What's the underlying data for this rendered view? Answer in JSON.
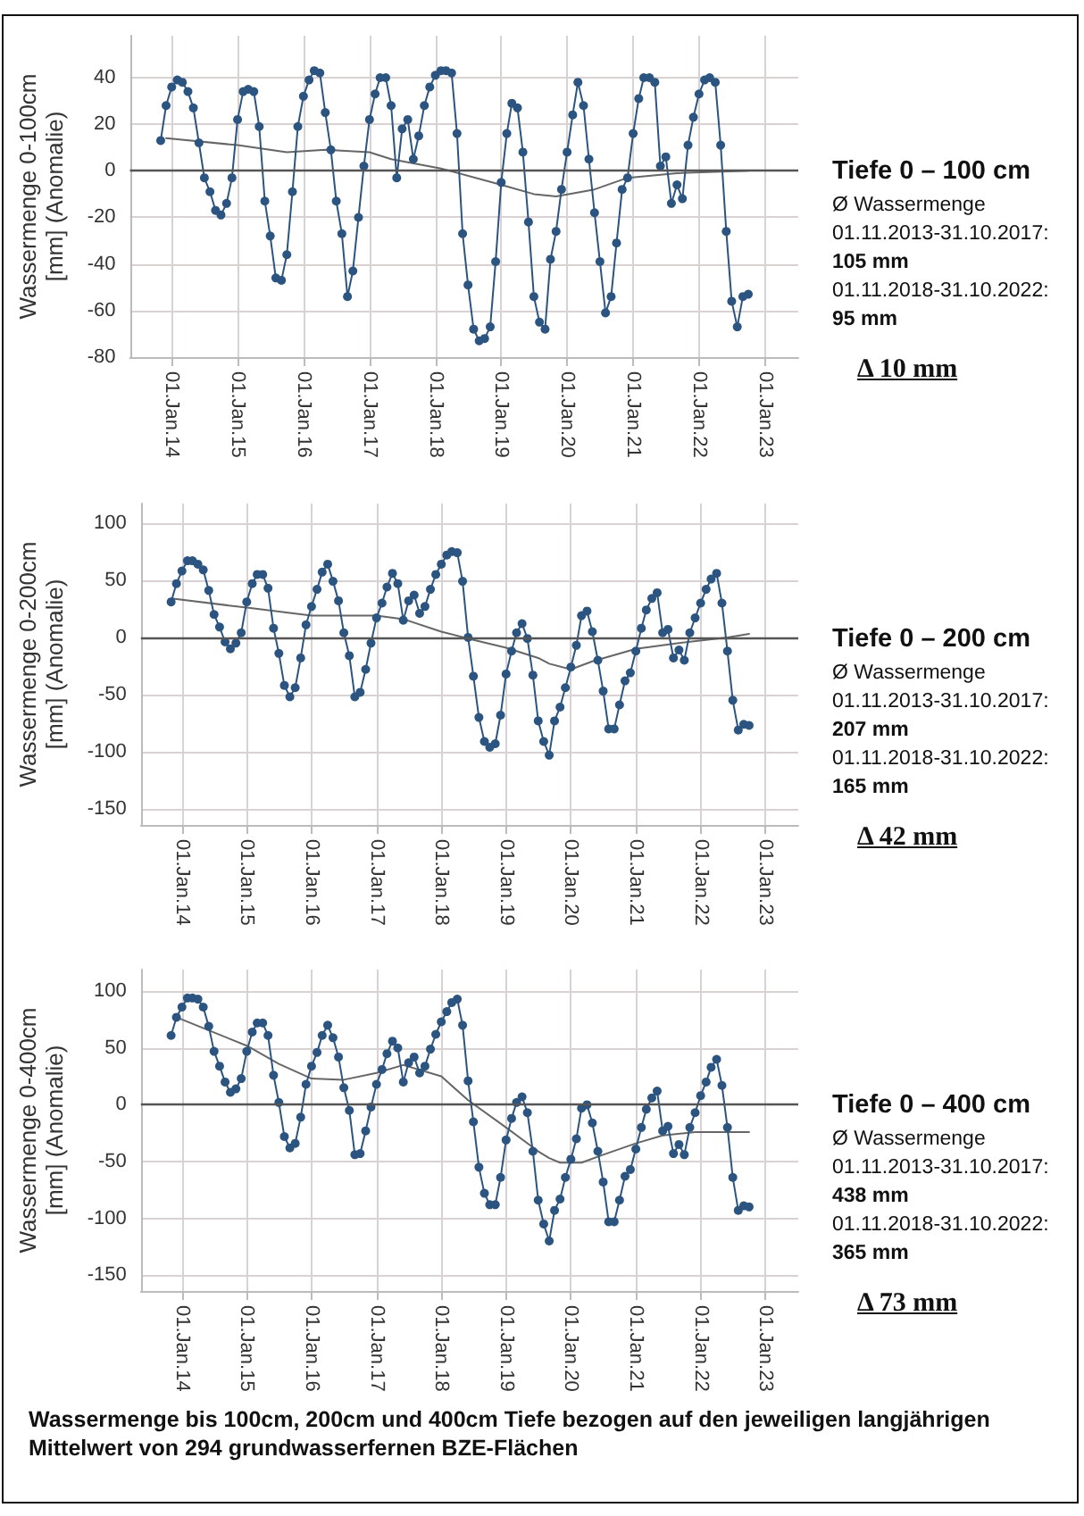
{
  "chart_data": [
    {
      "type": "line",
      "ylabel": "Wassermenge 0-100cm [mm] (Anomalie)",
      "xlim": [
        "2013-05-15",
        "2023-07-05"
      ],
      "ylim": [
        -80,
        58
      ],
      "xticks": [
        {
          "value": "2014-01-01",
          "label": "01.Jan.14"
        },
        {
          "value": "2015-01-01",
          "label": "01.Jan.15"
        },
        {
          "value": "2016-01-01",
          "label": "01.Jan.16"
        },
        {
          "value": "2017-01-01",
          "label": "01.Jan.17"
        },
        {
          "value": "2018-01-01",
          "label": "01.Jan.18"
        },
        {
          "value": "2019-01-01",
          "label": "01.Jan.19"
        },
        {
          "value": "2020-01-01",
          "label": "01.Jan.20"
        },
        {
          "value": "2021-01-01",
          "label": "01.Jan.21"
        },
        {
          "value": "2022-01-01",
          "label": "01.Jan.22"
        },
        {
          "value": "2023-01-01",
          "label": "01.Jan.23"
        }
      ],
      "yticks": [
        -80,
        -60,
        -40,
        -20,
        0,
        20,
        40
      ],
      "grid": true,
      "marker": "circle",
      "ref_lines": [
        {
          "axis": "y",
          "value": 0,
          "color": "#555555"
        }
      ],
      "x": [
        "2013-11",
        "2013-12",
        "2014-01",
        "2014-02",
        "2014-03",
        "2014-04",
        "2014-05",
        "2014-06",
        "2014-07",
        "2014-08",
        "2014-09",
        "2014-10",
        "2014-11",
        "2014-12",
        "2015-01",
        "2015-02",
        "2015-03",
        "2015-04",
        "2015-05",
        "2015-06",
        "2015-07",
        "2015-08",
        "2015-09",
        "2015-10",
        "2015-11",
        "2015-12",
        "2016-01",
        "2016-02",
        "2016-03",
        "2016-04",
        "2016-05",
        "2016-06",
        "2016-07",
        "2016-08",
        "2016-09",
        "2016-10",
        "2016-11",
        "2016-12",
        "2017-01",
        "2017-02",
        "2017-03",
        "2017-04",
        "2017-05",
        "2017-06",
        "2017-07",
        "2017-08",
        "2017-09",
        "2017-10",
        "2017-11",
        "2017-12",
        "2018-01",
        "2018-02",
        "2018-03",
        "2018-04",
        "2018-05",
        "2018-06",
        "2018-07",
        "2018-08",
        "2018-09",
        "2018-10",
        "2018-11",
        "2018-12",
        "2019-01",
        "2019-02",
        "2019-03",
        "2019-04",
        "2019-05",
        "2019-06",
        "2019-07",
        "2019-08",
        "2019-09",
        "2019-10",
        "2019-11",
        "2019-12",
        "2020-01",
        "2020-02",
        "2020-03",
        "2020-04",
        "2020-05",
        "2020-06",
        "2020-07",
        "2020-08",
        "2020-09",
        "2020-10",
        "2020-11",
        "2020-12",
        "2021-01",
        "2021-02",
        "2021-03",
        "2021-04",
        "2021-05",
        "2021-06",
        "2021-07",
        "2021-08",
        "2021-09",
        "2021-10",
        "2021-11",
        "2021-12",
        "2022-01",
        "2022-02",
        "2022-03",
        "2022-04",
        "2022-05",
        "2022-06",
        "2022-07",
        "2022-08",
        "2022-09",
        "2022-10"
      ],
      "series": [
        {
          "color": "#2b5580",
          "values": [
            13,
            28,
            36,
            39,
            38,
            34,
            27,
            12,
            -3,
            -9,
            -17,
            -19,
            -14,
            -3,
            22,
            34,
            35,
            34,
            19,
            -13,
            -28,
            -46,
            -47,
            -36,
            -9,
            19,
            32,
            39,
            43,
            42,
            25,
            9,
            -13,
            -27,
            -54,
            -43,
            -20,
            2,
            22,
            33,
            40,
            40,
            28,
            -3,
            18,
            22,
            5,
            15,
            28,
            36,
            41,
            43,
            43,
            42,
            16,
            -27,
            -49,
            -68,
            -73,
            -72,
            -67,
            -39,
            -5,
            16,
            29,
            27,
            8,
            -22,
            -54,
            -65,
            -68,
            -38,
            -26,
            -8,
            8,
            24,
            38,
            28,
            5,
            -18,
            -39,
            -61,
            -54,
            -31,
            -8,
            -3,
            16,
            31,
            40,
            40,
            38,
            2,
            6,
            -14,
            -6,
            -12,
            11,
            23,
            33,
            39,
            40,
            38,
            11,
            -26,
            -56,
            -67,
            -54,
            -53
          ]
        },
        {
          "type": "line",
          "marker": "none",
          "color": "#666666",
          "x": [
            "2013-12",
            "2015-01",
            "2015-10",
            "2016-05",
            "2017-01",
            "2017-05",
            "2018-02",
            "2019-01",
            "2019-07",
            "2019-11",
            "2020-06",
            "2020-12",
            "2021-09",
            "2022-10"
          ],
          "values": [
            14,
            11,
            8,
            9,
            8,
            5,
            1,
            -6,
            -10,
            -11,
            -8,
            -3,
            -1,
            0
          ]
        }
      ]
    },
    {
      "type": "other",
      "title": "Tiefe 0 – 100 cm",
      "annotations": [
        "Ø Wassermenge",
        "01.11.2013-31.10.2017:",
        "105 mm",
        "01.11.2018-31.10.2022:",
        "95 mm",
        "Δ 10 mm"
      ]
    },
    {
      "type": "line",
      "ylabel": "Wassermenge 0-200cm [mm] (Anomalie)",
      "xlim": [
        "2013-05-15",
        "2023-07-05"
      ],
      "ylim": [
        -164,
        117
      ],
      "xticks": [
        {
          "value": "2014-01-01",
          "label": "01.Jan.14"
        },
        {
          "value": "2015-01-01",
          "label": "01.Jan.15"
        },
        {
          "value": "2016-01-01",
          "label": "01.Jan.16"
        },
        {
          "value": "2017-01-01",
          "label": "01.Jan.17"
        },
        {
          "value": "2018-01-01",
          "label": "01.Jan.18"
        },
        {
          "value": "2019-01-01",
          "label": "01.Jan.19"
        },
        {
          "value": "2020-01-01",
          "label": "01.Jan.20"
        },
        {
          "value": "2021-01-01",
          "label": "01.Jan.21"
        },
        {
          "value": "2022-01-01",
          "label": "01.Jan.22"
        },
        {
          "value": "2023-01-01",
          "label": "01.Jan.23"
        }
      ],
      "yticks": [
        -150,
        -100,
        -50,
        0,
        50,
        100
      ],
      "grid": true,
      "marker": "circle",
      "ref_lines": [
        {
          "axis": "y",
          "value": 0,
          "color": "#555555"
        }
      ],
      "x": [
        "2013-11",
        "2013-12",
        "2014-01",
        "2014-02",
        "2014-03",
        "2014-04",
        "2014-05",
        "2014-06",
        "2014-07",
        "2014-08",
        "2014-09",
        "2014-10",
        "2014-11",
        "2014-12",
        "2015-01",
        "2015-02",
        "2015-03",
        "2015-04",
        "2015-05",
        "2015-06",
        "2015-07",
        "2015-08",
        "2015-09",
        "2015-10",
        "2015-11",
        "2015-12",
        "2016-01",
        "2016-02",
        "2016-03",
        "2016-04",
        "2016-05",
        "2016-06",
        "2016-07",
        "2016-08",
        "2016-09",
        "2016-10",
        "2016-11",
        "2016-12",
        "2017-01",
        "2017-02",
        "2017-03",
        "2017-04",
        "2017-05",
        "2017-06",
        "2017-07",
        "2017-08",
        "2017-09",
        "2017-10",
        "2017-11",
        "2017-12",
        "2018-01",
        "2018-02",
        "2018-03",
        "2018-04",
        "2018-05",
        "2018-06",
        "2018-07",
        "2018-08",
        "2018-09",
        "2018-10",
        "2018-11",
        "2018-12",
        "2019-01",
        "2019-02",
        "2019-03",
        "2019-04",
        "2019-05",
        "2019-06",
        "2019-07",
        "2019-08",
        "2019-09",
        "2019-10",
        "2019-11",
        "2019-12",
        "2020-01",
        "2020-02",
        "2020-03",
        "2020-04",
        "2020-05",
        "2020-06",
        "2020-07",
        "2020-08",
        "2020-09",
        "2020-10",
        "2020-11",
        "2020-12",
        "2021-01",
        "2021-02",
        "2021-03",
        "2021-04",
        "2021-05",
        "2021-06",
        "2021-07",
        "2021-08",
        "2021-09",
        "2021-10",
        "2021-11",
        "2021-12",
        "2022-01",
        "2022-02",
        "2022-03",
        "2022-04",
        "2022-05",
        "2022-06",
        "2022-07",
        "2022-08",
        "2022-09",
        "2022-10"
      ],
      "series": [
        {
          "color": "#2b5580",
          "values": [
            31,
            47,
            58,
            67,
            67,
            64,
            59,
            41,
            20,
            9,
            -4,
            -10,
            -5,
            4,
            31,
            47,
            55,
            55,
            43,
            8,
            -14,
            -42,
            -52,
            -44,
            -18,
            11,
            27,
            42,
            57,
            64,
            49,
            32,
            4,
            -16,
            -52,
            -48,
            -28,
            -5,
            17,
            30,
            44,
            56,
            47,
            15,
            32,
            37,
            21,
            27,
            42,
            55,
            64,
            72,
            75,
            74,
            49,
            0,
            -34,
            -70,
            -91,
            -96,
            -93,
            -68,
            -32,
            -12,
            4,
            12,
            -1,
            -33,
            -73,
            -91,
            -103,
            -73,
            -61,
            -44,
            -26,
            -7,
            19,
            23,
            5,
            -20,
            -47,
            -80,
            -80,
            -59,
            -38,
            -31,
            -12,
            8,
            24,
            34,
            39,
            4,
            7,
            -18,
            -11,
            -20,
            4,
            17,
            30,
            42,
            51,
            56,
            30,
            -12,
            -55,
            -81,
            -76,
            -77
          ]
        },
        {
          "type": "line",
          "marker": "none",
          "color": "#666666",
          "x": [
            "2013-11",
            "2015-01",
            "2016-01",
            "2017-01",
            "2017-06",
            "2018-01",
            "2018-06",
            "2019-01",
            "2019-07",
            "2019-09",
            "2020-01",
            "2020-05",
            "2021-01",
            "2021-09",
            "2022-06",
            "2022-10"
          ],
          "values": [
            34,
            26,
            19,
            19,
            16,
            5,
            -1,
            -9,
            -18,
            -23,
            -28,
            -21,
            -10,
            -5,
            0,
            3
          ]
        }
      ]
    },
    {
      "type": "other",
      "title": "Tiefe 0 – 200 cm",
      "annotations": [
        "Ø Wassermenge",
        "01.11.2013-31.10.2017:",
        "207 mm",
        "01.11.2018-31.10.2022:",
        "165 mm",
        "Δ 42 mm"
      ]
    },
    {
      "type": "line",
      "ylabel": "Wassermenge 0-400cm [mm] (Anomalie)",
      "xlim": [
        "2013-05-15",
        "2023-07-05"
      ],
      "ylim": [
        -164,
        119
      ],
      "xticks": [
        {
          "value": "2014-01-01",
          "label": "01.Jan.14"
        },
        {
          "value": "2015-01-01",
          "label": "01.Jan.15"
        },
        {
          "value": "2016-01-01",
          "label": "01.Jan.16"
        },
        {
          "value": "2017-01-01",
          "label": "01.Jan.17"
        },
        {
          "value": "2018-01-01",
          "label": "01.Jan.18"
        },
        {
          "value": "2019-01-01",
          "label": "01.Jan.19"
        },
        {
          "value": "2020-01-01",
          "label": "01.Jan.20"
        },
        {
          "value": "2021-01-01",
          "label": "01.Jan.21"
        },
        {
          "value": "2022-01-01",
          "label": "01.Jan.22"
        },
        {
          "value": "2023-01-01",
          "label": "01.Jan.23"
        }
      ],
      "yticks": [
        -150,
        -100,
        -50,
        0,
        50,
        100
      ],
      "grid": true,
      "marker": "circle",
      "ref_lines": [
        {
          "axis": "y",
          "value": 0,
          "color": "#555555"
        }
      ],
      "x": [
        "2013-11",
        "2013-12",
        "2014-01",
        "2014-02",
        "2014-03",
        "2014-04",
        "2014-05",
        "2014-06",
        "2014-07",
        "2014-08",
        "2014-09",
        "2014-10",
        "2014-11",
        "2014-12",
        "2015-01",
        "2015-02",
        "2015-03",
        "2015-04",
        "2015-05",
        "2015-06",
        "2015-07",
        "2015-08",
        "2015-09",
        "2015-10",
        "2015-11",
        "2015-12",
        "2016-01",
        "2016-02",
        "2016-03",
        "2016-04",
        "2016-05",
        "2016-06",
        "2016-07",
        "2016-08",
        "2016-09",
        "2016-10",
        "2016-11",
        "2016-12",
        "2017-01",
        "2017-02",
        "2017-03",
        "2017-04",
        "2017-05",
        "2017-06",
        "2017-07",
        "2017-08",
        "2017-09",
        "2017-10",
        "2017-11",
        "2017-12",
        "2018-01",
        "2018-02",
        "2018-03",
        "2018-04",
        "2018-05",
        "2018-06",
        "2018-07",
        "2018-08",
        "2018-09",
        "2018-10",
        "2018-11",
        "2018-12",
        "2019-01",
        "2019-02",
        "2019-03",
        "2019-04",
        "2019-05",
        "2019-06",
        "2019-07",
        "2019-08",
        "2019-09",
        "2019-10",
        "2019-11",
        "2019-12",
        "2020-01",
        "2020-02",
        "2020-03",
        "2020-04",
        "2020-05",
        "2020-06",
        "2020-07",
        "2020-08",
        "2020-09",
        "2020-10",
        "2020-11",
        "2020-12",
        "2021-01",
        "2021-02",
        "2021-03",
        "2021-04",
        "2021-05",
        "2021-06",
        "2021-07",
        "2021-08",
        "2021-09",
        "2021-10",
        "2021-11",
        "2021-12",
        "2022-01",
        "2022-02",
        "2022-03",
        "2022-04",
        "2022-05",
        "2022-06",
        "2022-07",
        "2022-08",
        "2022-09",
        "2022-10"
      ],
      "series": [
        {
          "color": "#2b5580",
          "values": [
            61,
            77,
            86,
            94,
            94,
            93,
            86,
            69,
            47,
            34,
            20,
            11,
            14,
            23,
            47,
            64,
            72,
            72,
            61,
            26,
            2,
            -28,
            -38,
            -34,
            -11,
            18,
            34,
            46,
            61,
            70,
            59,
            42,
            15,
            -5,
            -44,
            -43,
            -23,
            -2,
            18,
            31,
            45,
            56,
            50,
            20,
            37,
            42,
            28,
            34,
            49,
            62,
            73,
            82,
            90,
            93,
            70,
            21,
            -15,
            -55,
            -78,
            -88,
            -88,
            -64,
            -31,
            -12,
            2,
            7,
            -7,
            -41,
            -84,
            -105,
            -120,
            -93,
            -83,
            -64,
            -48,
            -30,
            -3,
            0,
            -16,
            -41,
            -68,
            -103,
            -103,
            -84,
            -63,
            -57,
            -39,
            -20,
            -4,
            6,
            12,
            -23,
            -19,
            -43,
            -35,
            -44,
            -20,
            -7,
            8,
            20,
            33,
            40,
            17,
            -20,
            -64,
            -93,
            -89,
            -90
          ]
        },
        {
          "type": "line",
          "marker": "none",
          "color": "#666666",
          "x": [
            "2013-12",
            "2015-01",
            "2015-07",
            "2016-01",
            "2016-07",
            "2017-01",
            "2017-06",
            "2018-01",
            "2018-06",
            "2019-01",
            "2019-07",
            "2019-09",
            "2019-11",
            "2020-03",
            "2020-07",
            "2021-01",
            "2021-06",
            "2021-12",
            "2022-10"
          ],
          "values": [
            77,
            52,
            36,
            23,
            22,
            28,
            35,
            25,
            4,
            -20,
            -41,
            -47,
            -51,
            -51,
            -44,
            -34,
            -27,
            -24,
            -24
          ]
        }
      ]
    },
    {
      "type": "other",
      "title": "Tiefe 0 – 400 cm",
      "annotations": [
        "Ø Wassermenge",
        "01.11.2013-31.10.2017:",
        "438 mm",
        "01.11.2018-31.10.2022:",
        "365 mm",
        "Δ 73 mm"
      ]
    },
    {
      "type": "other",
      "annotations": [
        "Wassermenge bis 100cm, 200cm und 400cm Tiefe bezogen auf den jeweiligen langjährigen Mittelwert von 294 grundwasserfernen BZE-Flächen"
      ]
    }
  ]
}
